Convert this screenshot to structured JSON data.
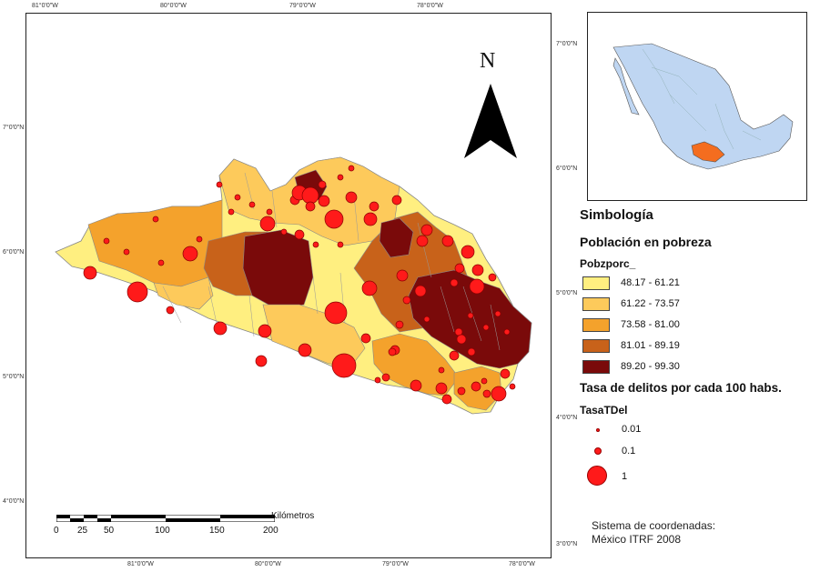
{
  "colors": {
    "class_1": "#ffef80",
    "class_2": "#fdca5b",
    "class_3": "#f4a22c",
    "class_4": "#c8621a",
    "class_5": "#7a0a0a",
    "dot": "#ff1a1a",
    "inset_country": "#bfd6f2",
    "inset_state": "#f46d1f"
  },
  "map": {
    "top_ticks": [
      "81°0'0\"W",
      "80°0'0\"W",
      "79°0'0\"W",
      "78°0'0\"W"
    ],
    "bottom_ticks": [
      "81°0'0\"W",
      "80°0'0\"W",
      "79°0'0\"W",
      "78°0'0\"W"
    ],
    "left_ticks": [
      "7°0'0\"N",
      "6°0'0\"N",
      "5°0'0\"N",
      "4°0'0\"N"
    ],
    "right_ticks": [
      "7°0'0\"N",
      "6°0'0\"N",
      "5°0'0\"N",
      "4°0'0\"N",
      "3°0'0\"N"
    ],
    "north_label": "N",
    "north_arrow_icon": "north-arrow-icon"
  },
  "scale": {
    "units_label": "Kilómetros",
    "numbers": [
      "0",
      "25",
      "50",
      "100",
      "150",
      "200"
    ]
  },
  "legend": {
    "title": "Simbología",
    "poverty_title": "Población en pobreza",
    "poverty_field": "Pobzporc_",
    "poverty_classes": [
      {
        "label": "48.17 - 61.21"
      },
      {
        "label": "61.22 - 73.57"
      },
      {
        "label": "73.58 - 81.00"
      },
      {
        "label": "81.01 - 89.19"
      },
      {
        "label": "89.20 - 99.30"
      }
    ],
    "crime_title": "Tasa de delitos por cada 100 habs.",
    "crime_field": "TasaTDel",
    "crime_classes": [
      {
        "label": "0.01"
      },
      {
        "label": "0.1"
      },
      {
        "label": "1"
      }
    ]
  },
  "crs": {
    "line1": "Sistema de coordenadas:",
    "line2": "México ITRF 2008"
  }
}
